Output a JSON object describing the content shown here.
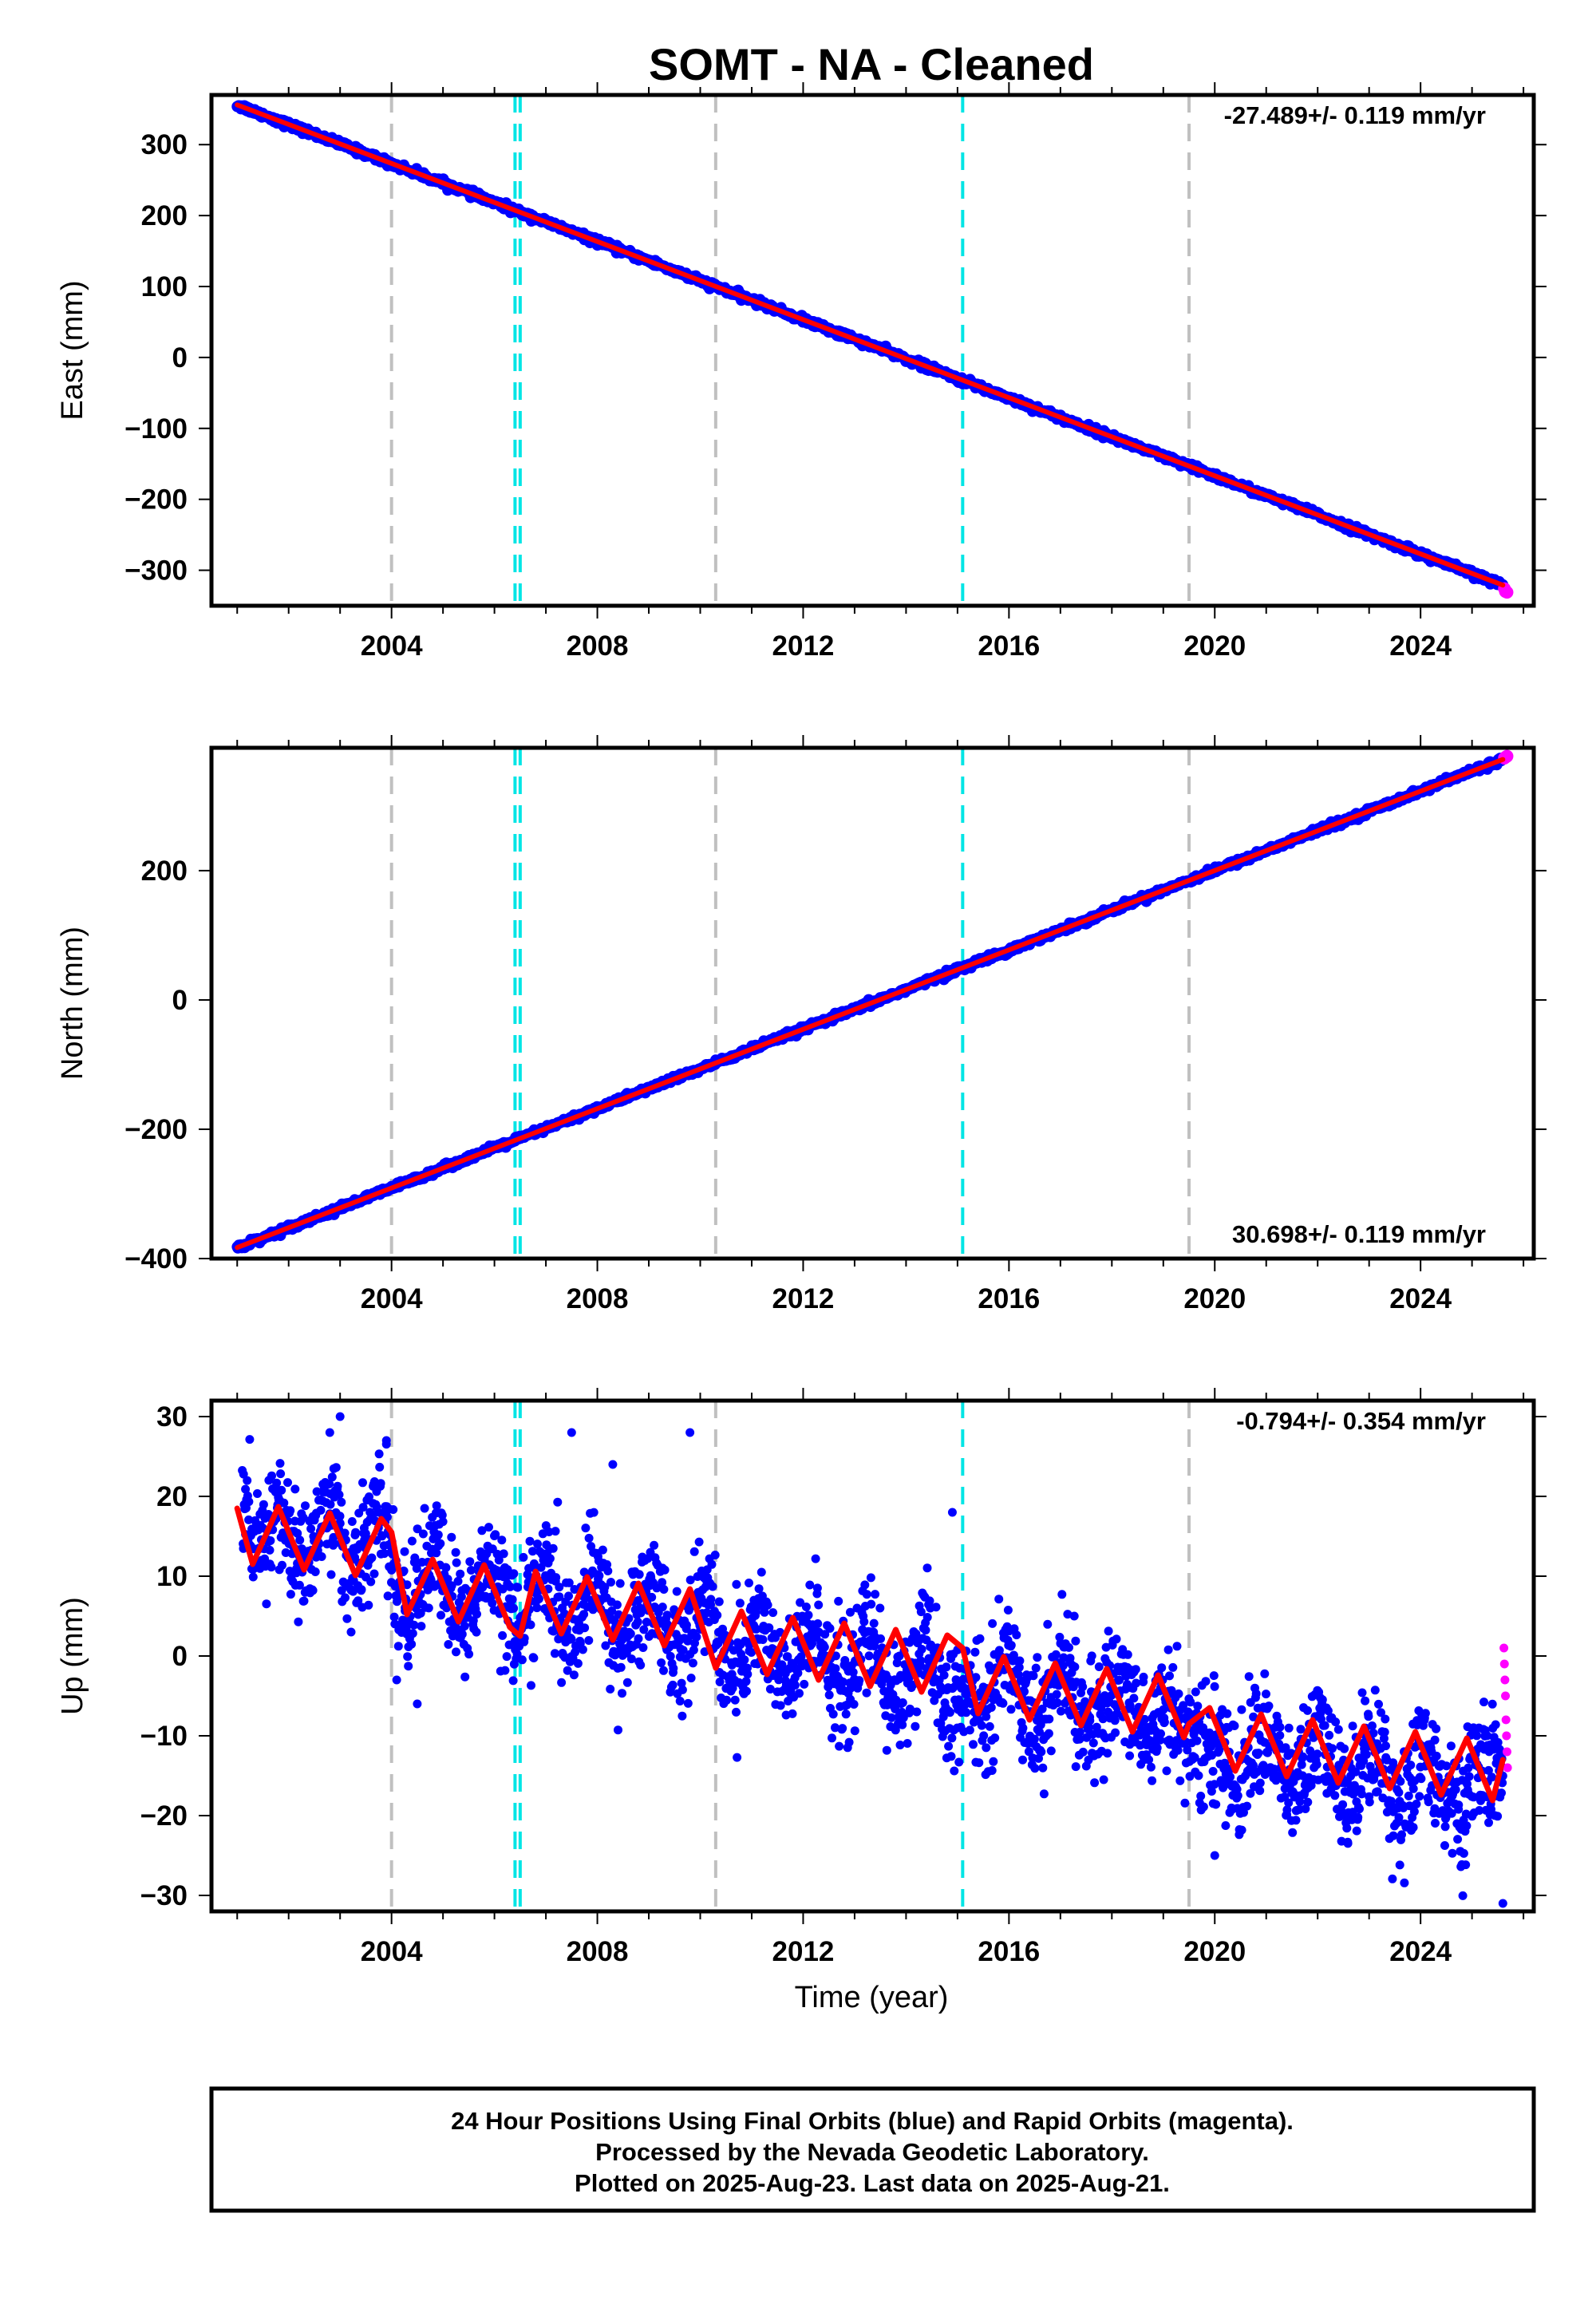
{
  "title": "SOMT  - NA - Cleaned",
  "xlabel": "Time (year)",
  "caption": {
    "lines": [
      "24 Hour Positions Using Final Orbits (blue) and Rapid Orbits (magenta).",
      "Processed by the Nevada Geodetic Laboratory.",
      "Plotted on 2025-Aug-23. Last data on 2025-Aug-21."
    ]
  },
  "colors": {
    "final_orbits": "#0000ff",
    "rapid_orbits": "#ff00ff",
    "model_fit": "#ff0000",
    "gray_markers": "#c0c0c0",
    "cyan_markers": "#00e5e5"
  },
  "chart_data": [
    {
      "type": "scatter",
      "ylabel": "East (mm)",
      "xlim": [
        2000.5,
        2026.2
      ],
      "ylim": [
        -350,
        370
      ],
      "x_ticks": [
        2004,
        2008,
        2012,
        2016,
        2020,
        2024
      ],
      "x_tick_labels": [
        "2004",
        "2008",
        "2012",
        "2016",
        "2020",
        "2024"
      ],
      "y_ticks": [
        300,
        200,
        100,
        0,
        -100,
        -200,
        -300
      ],
      "y_tick_labels": [
        "300",
        "200",
        "100",
        "0",
        "−100",
        "−200",
        "−300"
      ],
      "rate_label": "-27.489+/- 0.119 mm/yr",
      "rate_label_position": "top-right",
      "gray_markers": [
        2004.0,
        2010.3,
        2019.5
      ],
      "cyan_markers": [
        2006.4,
        2006.5,
        2015.1
      ],
      "series": [
        {
          "role": "final_orbits",
          "values": [
            [
              2001.0,
              356
            ],
            [
              2002.0,
              328
            ],
            [
              2003.0,
              301
            ],
            [
              2004.0,
              273
            ],
            [
              2005.0,
              246
            ],
            [
              2006.0,
              218
            ],
            [
              2007.0,
              191
            ],
            [
              2008.0,
              163
            ],
            [
              2009.0,
              136
            ],
            [
              2010.0,
              108
            ],
            [
              2011.0,
              81
            ],
            [
              2012.0,
              53
            ],
            [
              2013.0,
              26
            ],
            [
              2014.0,
              -2
            ],
            [
              2015.0,
              -30
            ],
            [
              2016.0,
              -57
            ],
            [
              2017.0,
              -85
            ],
            [
              2018.0,
              -112
            ],
            [
              2019.0,
              -140
            ],
            [
              2020.0,
              -167
            ],
            [
              2021.0,
              -195
            ],
            [
              2022.0,
              -222
            ],
            [
              2023.0,
              -250
            ],
            [
              2024.0,
              -277
            ],
            [
              2025.0,
              -305
            ],
            [
              2025.6,
              -321
            ]
          ]
        },
        {
          "role": "rapid_orbits",
          "values": [
            [
              2025.63,
              -326
            ],
            [
              2025.65,
              -330
            ],
            [
              2025.68,
              -331
            ]
          ]
        },
        {
          "role": "model_fit",
          "values": [
            [
              2001.0,
              356
            ],
            [
              2025.6,
              -321
            ]
          ]
        }
      ]
    },
    {
      "type": "scatter",
      "ylabel": "North (mm)",
      "xlim": [
        2000.5,
        2026.2
      ],
      "ylim": [
        -400,
        390
      ],
      "x_ticks": [
        2004,
        2008,
        2012,
        2016,
        2020,
        2024
      ],
      "x_tick_labels": [
        "2004",
        "2008",
        "2012",
        "2016",
        "2020",
        "2024"
      ],
      "y_ticks": [
        200,
        0,
        -200,
        -400
      ],
      "y_tick_labels": [
        "200",
        "0",
        "−200",
        "−400"
      ],
      "rate_label": "30.698+/- 0.119 mm/yr",
      "rate_label_position": "bottom-right",
      "gray_markers": [
        2004.0,
        2010.3,
        2019.5
      ],
      "cyan_markers": [
        2006.4,
        2006.5,
        2015.1
      ],
      "series": [
        {
          "role": "final_orbits",
          "values": [
            [
              2001.0,
              -383
            ],
            [
              2002.0,
              -352
            ],
            [
              2003.0,
              -322
            ],
            [
              2004.0,
              -291
            ],
            [
              2005.0,
              -260
            ],
            [
              2006.0,
              -229
            ],
            [
              2007.0,
              -199
            ],
            [
              2008.0,
              -168
            ],
            [
              2009.0,
              -137
            ],
            [
              2010.0,
              -107
            ],
            [
              2011.0,
              -76
            ],
            [
              2012.0,
              -45
            ],
            [
              2013.0,
              -15
            ],
            [
              2014.0,
              16
            ],
            [
              2015.0,
              47
            ],
            [
              2016.0,
              77
            ],
            [
              2017.0,
              108
            ],
            [
              2018.0,
              139
            ],
            [
              2019.0,
              170
            ],
            [
              2020.0,
              200
            ],
            [
              2021.0,
              231
            ],
            [
              2022.0,
              262
            ],
            [
              2023.0,
              292
            ],
            [
              2024.0,
              323
            ],
            [
              2025.0,
              354
            ],
            [
              2025.6,
              372
            ]
          ]
        },
        {
          "role": "rapid_orbits",
          "values": [
            [
              2025.63,
              374
            ],
            [
              2025.66,
              376
            ],
            [
              2025.68,
              377
            ]
          ]
        },
        {
          "role": "model_fit",
          "values": [
            [
              2001.0,
              -383
            ],
            [
              2025.6,
              372
            ]
          ]
        }
      ]
    },
    {
      "type": "scatter",
      "ylabel": "Up (mm)",
      "xlim": [
        2000.5,
        2026.2
      ],
      "ylim": [
        -32,
        32
      ],
      "x_ticks": [
        2004,
        2008,
        2012,
        2016,
        2020,
        2024
      ],
      "x_tick_labels": [
        "2004",
        "2008",
        "2012",
        "2016",
        "2020",
        "2024"
      ],
      "y_ticks": [
        30,
        20,
        10,
        0,
        -10,
        -20,
        -30
      ],
      "y_tick_labels": [
        "30",
        "20",
        "10",
        "0",
        "−10",
        "−20",
        "−30"
      ],
      "rate_label": "-0.794+/- 0.354 mm/yr",
      "rate_label_position": "top-right",
      "gray_markers": [
        2004.0,
        2010.3,
        2019.5
      ],
      "cyan_markers": [
        2006.4,
        2006.5,
        2015.1
      ],
      "series": [
        {
          "role": "final_orbits",
          "values": [
            [
              2001.1,
              20
            ],
            [
              2001.3,
              12
            ],
            [
              2001.6,
              16
            ],
            [
              2001.8,
              19
            ],
            [
              2002.1,
              13
            ],
            [
              2002.3,
              11
            ],
            [
              2002.6,
              17
            ],
            [
              2002.9,
              19
            ],
            [
              2003.1,
              12
            ],
            [
              2003.3,
              10
            ],
            [
              2003.6,
              16
            ],
            [
              2003.9,
              18
            ],
            [
              2004.1,
              7
            ],
            [
              2004.3,
              5
            ],
            [
              2004.7,
              11
            ],
            [
              2004.9,
              13
            ],
            [
              2005.2,
              6
            ],
            [
              2005.4,
              4
            ],
            [
              2005.8,
              10
            ],
            [
              2006.0,
              12
            ],
            [
              2006.3,
              5
            ],
            [
              2006.5,
              3
            ],
            [
              2006.8,
              9
            ],
            [
              2007.0,
              11
            ],
            [
              2007.3,
              4
            ],
            [
              2007.5,
              2
            ],
            [
              2007.8,
              8
            ],
            [
              2008.0,
              10
            ],
            [
              2008.3,
              3
            ],
            [
              2008.5,
              1
            ],
            [
              2008.9,
              7
            ],
            [
              2009.1,
              9
            ],
            [
              2009.4,
              2
            ],
            [
              2009.6,
              0
            ],
            [
              2009.9,
              6
            ],
            [
              2010.1,
              8
            ],
            [
              2010.5,
              -1
            ],
            [
              2010.7,
              -3
            ],
            [
              2011.0,
              3
            ],
            [
              2011.2,
              5
            ],
            [
              2011.5,
              -2
            ],
            [
              2011.7,
              -4
            ],
            [
              2012.1,
              2
            ],
            [
              2012.3,
              4
            ],
            [
              2012.6,
              -3
            ],
            [
              2012.8,
              -5
            ],
            [
              2013.1,
              1
            ],
            [
              2013.3,
              3
            ],
            [
              2013.6,
              -4
            ],
            [
              2013.8,
              -6
            ],
            [
              2014.2,
              0
            ],
            [
              2014.4,
              2
            ],
            [
              2014.7,
              -5
            ],
            [
              2014.9,
              -7
            ],
            [
              2015.3,
              -5
            ],
            [
              2015.5,
              -8
            ],
            [
              2015.8,
              -2
            ],
            [
              2016.1,
              0
            ],
            [
              2016.3,
              -6
            ],
            [
              2016.6,
              -9
            ],
            [
              2016.9,
              -3
            ],
            [
              2017.1,
              -1
            ],
            [
              2017.4,
              -7
            ],
            [
              2017.6,
              -10
            ],
            [
              2018.0,
              -4
            ],
            [
              2018.2,
              -2
            ],
            [
              2018.5,
              -8
            ],
            [
              2018.7,
              -11
            ],
            [
              2019.0,
              -5
            ],
            [
              2019.3,
              -8
            ],
            [
              2019.7,
              -12
            ],
            [
              2020.0,
              -10
            ],
            [
              2020.2,
              -14
            ],
            [
              2020.5,
              -16
            ],
            [
              2020.8,
              -10
            ],
            [
              2021.0,
              -9
            ],
            [
              2021.3,
              -15
            ],
            [
              2021.6,
              -17
            ],
            [
              2021.9,
              -11
            ],
            [
              2022.1,
              -10
            ],
            [
              2022.4,
              -16
            ],
            [
              2022.6,
              -18
            ],
            [
              2022.9,
              -12
            ],
            [
              2023.2,
              -11
            ],
            [
              2023.4,
              -17
            ],
            [
              2023.7,
              -19
            ],
            [
              2024.0,
              -13
            ],
            [
              2024.2,
              -12
            ],
            [
              2024.5,
              -18
            ],
            [
              2024.8,
              -20
            ],
            [
              2025.1,
              -14
            ],
            [
              2025.3,
              -13
            ],
            [
              2025.6,
              -16
            ]
          ]
        },
        {
          "role": "rapid_orbits",
          "values": [
            [
              2025.62,
              1
            ],
            [
              2025.63,
              -1
            ],
            [
              2025.64,
              -3
            ],
            [
              2025.65,
              -5
            ],
            [
              2025.66,
              -8
            ],
            [
              2025.67,
              -10
            ],
            [
              2025.68,
              -12
            ],
            [
              2025.69,
              -14
            ]
          ]
        },
        {
          "role": "model_fit",
          "values": [
            [
              2001.0,
              18.5
            ],
            [
              2001.3,
              11.5
            ],
            [
              2001.8,
              18.7
            ],
            [
              2002.3,
              10.8
            ],
            [
              2002.8,
              17.9
            ],
            [
              2003.3,
              10.1
            ],
            [
              2003.8,
              17.2
            ],
            [
              2004.0,
              15.5
            ],
            [
              2004.3,
              5.2
            ],
            [
              2004.8,
              12.1
            ],
            [
              2005.3,
              4.3
            ],
            [
              2005.8,
              11.4
            ],
            [
              2006.3,
              3.6
            ],
            [
              2006.5,
              2.5
            ],
            [
              2006.8,
              10.6
            ],
            [
              2007.3,
              2.8
            ],
            [
              2007.8,
              9.9
            ],
            [
              2008.3,
              2.0
            ],
            [
              2008.8,
              9.1
            ],
            [
              2009.3,
              1.3
            ],
            [
              2009.8,
              8.4
            ],
            [
              2010.3,
              -1.5
            ],
            [
              2010.8,
              5.6
            ],
            [
              2011.3,
              -2.3
            ],
            [
              2011.8,
              4.8
            ],
            [
              2012.3,
              -3.0
            ],
            [
              2012.8,
              4.1
            ],
            [
              2013.3,
              -3.8
            ],
            [
              2013.8,
              3.3
            ],
            [
              2014.3,
              -4.5
            ],
            [
              2014.8,
              2.6
            ],
            [
              2015.1,
              1.0
            ],
            [
              2015.4,
              -7.2
            ],
            [
              2015.9,
              -0.1
            ],
            [
              2016.4,
              -8.0
            ],
            [
              2016.9,
              -0.9
            ],
            [
              2017.4,
              -8.7
            ],
            [
              2017.9,
              -1.6
            ],
            [
              2018.4,
              -9.5
            ],
            [
              2018.9,
              -2.4
            ],
            [
              2019.4,
              -10.2
            ],
            [
              2019.5,
              -8.5
            ],
            [
              2019.9,
              -6.5
            ],
            [
              2020.4,
              -14.4
            ],
            [
              2020.9,
              -7.3
            ],
            [
              2021.4,
              -15.1
            ],
            [
              2021.9,
              -8.0
            ],
            [
              2022.4,
              -15.9
            ],
            [
              2022.9,
              -8.8
            ],
            [
              2023.4,
              -16.6
            ],
            [
              2023.9,
              -9.5
            ],
            [
              2024.4,
              -17.4
            ],
            [
              2024.9,
              -10.3
            ],
            [
              2025.4,
              -18.1
            ],
            [
              2025.6,
              -13.0
            ]
          ]
        }
      ]
    }
  ]
}
